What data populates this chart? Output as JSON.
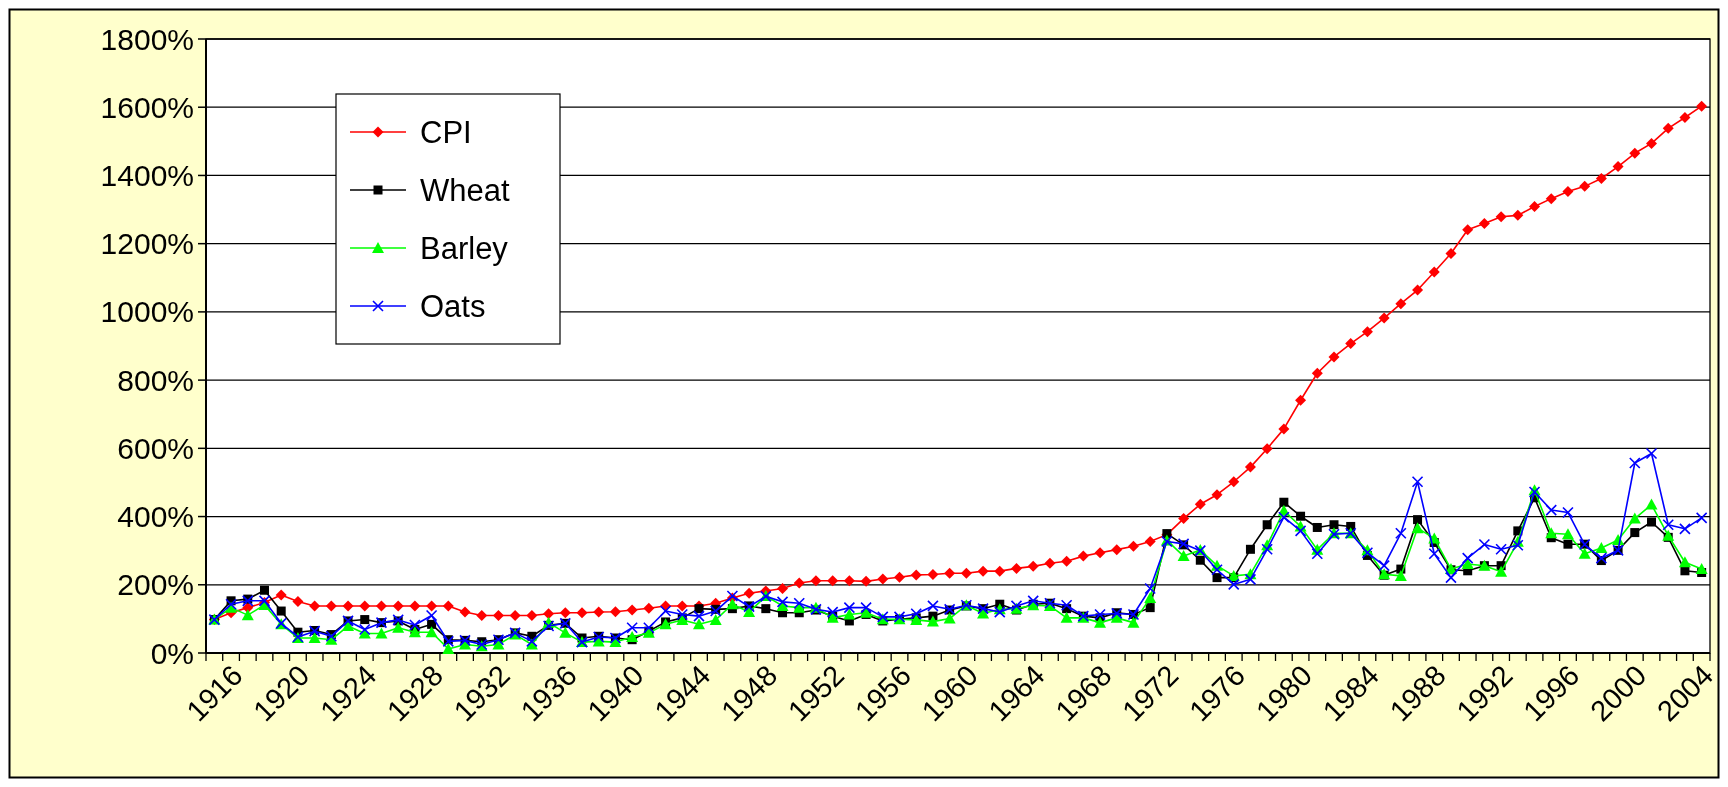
{
  "chart_data": {
    "type": "line",
    "categories": [
      "1916",
      null,
      null,
      null,
      "1920",
      null,
      null,
      null,
      "1924",
      null,
      null,
      null,
      "1928",
      null,
      null,
      null,
      "1932",
      null,
      null,
      null,
      "1936",
      null,
      null,
      null,
      "1940",
      null,
      null,
      null,
      "1944",
      null,
      null,
      null,
      "1948",
      null,
      null,
      null,
      "1952",
      null,
      null,
      null,
      "1956",
      null,
      null,
      null,
      "1960",
      null,
      null,
      null,
      "1964",
      null,
      null,
      null,
      "1968",
      null,
      null,
      null,
      "1972",
      null,
      null,
      null,
      "1976",
      null,
      null,
      null,
      "1980",
      null,
      null,
      null,
      "1984",
      null,
      null,
      null,
      "1988",
      null,
      null,
      null,
      "1992",
      null,
      null,
      null,
      "1996",
      null,
      null,
      null,
      "2000",
      null,
      null,
      null,
      "2004",
      null
    ],
    "series": [
      {
        "name": "CPI",
        "color": "#ff0000",
        "marker": "diamond",
        "values": [
          98,
          118,
          133,
          148,
          170,
          151,
          138,
          138,
          138,
          138,
          138,
          138,
          138,
          138,
          138,
          120,
          110,
          110,
          110,
          110,
          115,
          118,
          118,
          120,
          121,
          126,
          131,
          138,
          138,
          138,
          146,
          161,
          175,
          182,
          189,
          205,
          212,
          212,
          212,
          210,
          217,
          222,
          229,
          230,
          234,
          234,
          240,
          240,
          248,
          254,
          263,
          269,
          284,
          294,
          303,
          313,
          327,
          347,
          394,
          436,
          464,
          502,
          545,
          599,
          657,
          741,
          820,
          868,
          907,
          942,
          982,
          1024,
          1064,
          1117,
          1171,
          1241,
          1259,
          1279,
          1283,
          1309,
          1332,
          1353,
          1368,
          1391,
          1426,
          1465,
          1494,
          1538,
          1570,
          1603
        ]
      },
      {
        "name": "Wheat",
        "color": "#000000",
        "marker": "square",
        "values": [
          98,
          153,
          158,
          184,
          123,
          61,
          66,
          54,
          94,
          98,
          89,
          94,
          69,
          84,
          39,
          37,
          33,
          39,
          59,
          49,
          81,
          87,
          44,
          49,
          44,
          39,
          64,
          91,
          103,
          130,
          128,
          130,
          138,
          130,
          118,
          118,
          126,
          108,
          94,
          113,
          94,
          99,
          103,
          108,
          126,
          138,
          130,
          143,
          126,
          143,
          146,
          130,
          108,
          103,
          118,
          113,
          133,
          350,
          317,
          272,
          221,
          221,
          304,
          376,
          442,
          401,
          368,
          376,
          371,
          286,
          228,
          246,
          391,
          324,
          244,
          241,
          256,
          256,
          358,
          455,
          338,
          319,
          319,
          271,
          301,
          353,
          384,
          339,
          241,
          236
        ]
      },
      {
        "name": "Barley",
        "color": "#00ff00",
        "marker": "triangle",
        "values": [
          98,
          133,
          111,
          141,
          84,
          44,
          44,
          39,
          79,
          57,
          57,
          74,
          61,
          61,
          12,
          25,
          20,
          25,
          54,
          25,
          89,
          59,
          32,
          34,
          32,
          47,
          59,
          84,
          97,
          84,
          97,
          143,
          120,
          167,
          138,
          133,
          133,
          103,
          113,
          118,
          99,
          99,
          97,
          92,
          101,
          140,
          116,
          128,
          130,
          140,
          138,
          103,
          103,
          89,
          103,
          89,
          161,
          330,
          284,
          302,
          256,
          226,
          231,
          316,
          417,
          371,
          303,
          351,
          351,
          301,
          231,
          226,
          366,
          336,
          246,
          261,
          256,
          238,
          326,
          477,
          351,
          348,
          291,
          308,
          331,
          394,
          435,
          344,
          266,
          246
        ]
      },
      {
        "name": "Oats",
        "color": "#0000ff",
        "marker": "cross",
        "values": [
          98,
          143,
          153,
          153,
          87,
          47,
          64,
          49,
          94,
          69,
          89,
          97,
          82,
          110,
          34,
          37,
          25,
          39,
          59,
          34,
          79,
          87,
          32,
          47,
          44,
          74,
          74,
          123,
          113,
          108,
          123,
          167,
          136,
          166,
          150,
          146,
          128,
          120,
          133,
          133,
          106,
          106,
          115,
          138,
          128,
          140,
          130,
          120,
          138,
          153,
          146,
          140,
          108,
          113,
          116,
          113,
          189,
          327,
          320,
          300,
          244,
          201,
          216,
          304,
          398,
          358,
          291,
          348,
          351,
          294,
          256,
          351,
          502,
          291,
          221,
          278,
          318,
          304,
          316,
          472,
          419,
          412,
          318,
          278,
          301,
          557,
          585,
          376,
          364,
          396
        ]
      }
    ],
    "ylim": [
      0,
      1800
    ],
    "yticks": [
      {
        "value": 0,
        "label": "0%"
      },
      {
        "value": 200,
        "label": "200%"
      },
      {
        "value": 400,
        "label": "400%"
      },
      {
        "value": 600,
        "label": "600%"
      },
      {
        "value": 800,
        "label": "800%"
      },
      {
        "value": 1000,
        "label": "1000%"
      },
      {
        "value": 1200,
        "label": "1200%"
      },
      {
        "value": 1400,
        "label": "1400%"
      },
      {
        "value": 1600,
        "label": "1600%"
      },
      {
        "value": 1800,
        "label": "1800%"
      }
    ],
    "grid": "y",
    "legend": "top left"
  }
}
